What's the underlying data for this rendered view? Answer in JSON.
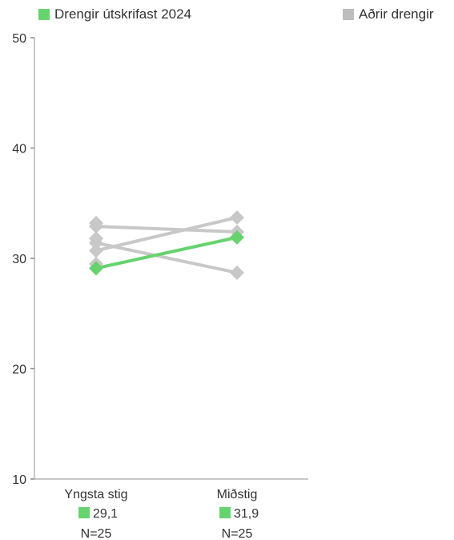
{
  "legend": {
    "highlight_label": "Drengir útskrifast 2024",
    "others_label": "Aðrir drengir"
  },
  "colors": {
    "highlight": "#66d36e",
    "others": "#c8c8c8",
    "others_swatch": "#bdbdbd",
    "axis": "#c8c8c8",
    "text": "#333333"
  },
  "chart_data": {
    "type": "line",
    "categories": [
      "Yngsta stig",
      "Miðstig"
    ],
    "ylim": [
      10,
      50
    ],
    "yticks": [
      10,
      20,
      30,
      40,
      50
    ],
    "grid": false,
    "legend_position": "top",
    "series": [
      {
        "name": "Drengir útskrifast 2024",
        "values": [
          29.1,
          31.9
        ],
        "highlight": true
      },
      {
        "values": [
          30.7,
          33.7
        ],
        "highlight": false
      },
      {
        "values": [
          31.4,
          28.7
        ],
        "highlight": false
      },
      {
        "values": [
          32.9,
          32.4
        ],
        "highlight": false
      },
      {
        "values": [
          33.2,
          null
        ],
        "highlight": false
      },
      {
        "values": [
          31.8,
          null
        ],
        "highlight": false
      },
      {
        "values": [
          29.5,
          null
        ],
        "highlight": false
      }
    ],
    "category_annotations": [
      {
        "value_label": "29,1",
        "n_label": "N=25"
      },
      {
        "value_label": "31,9",
        "n_label": "N=25"
      }
    ]
  }
}
